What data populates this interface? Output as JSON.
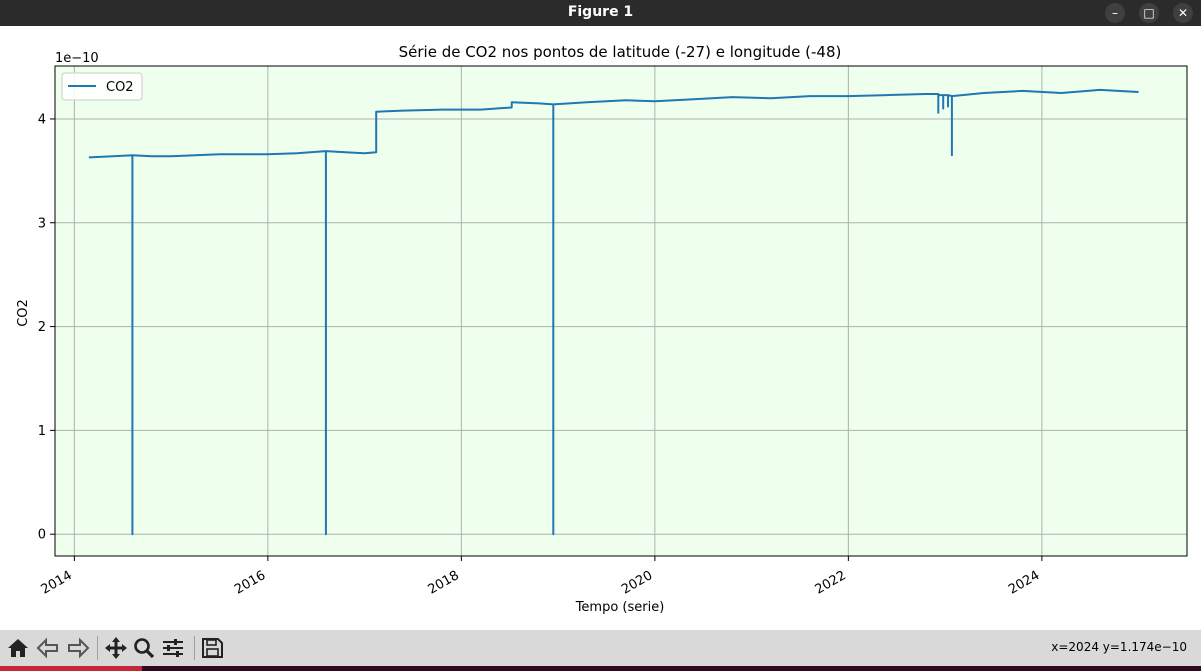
{
  "window": {
    "title": "Figure 1",
    "buttons": [
      "–",
      "□",
      "✕"
    ]
  },
  "toolbar": {
    "buttons": [
      "home-icon",
      "back-icon",
      "forward-icon",
      "pan-icon",
      "zoom-icon",
      "configure-subplots-icon",
      "save-icon"
    ],
    "coordinate_readout": "x=2024 y=1.174e−10"
  },
  "colors": {
    "line": "#1f77b4",
    "plot_background": "#eeffee",
    "grid": "#b0b0b0",
    "titlebar": "#2b2b2b"
  },
  "chart_data": {
    "type": "line",
    "title": "Série de CO2 nos pontos de latitude (-27) e longitude (-48)",
    "xlabel": "Tempo (serie)",
    "ylabel": "CO2",
    "y_offset_text": "1e−10",
    "xlim": [
      2013.8,
      2025.5
    ],
    "ylim": [
      -0.21,
      4.51
    ],
    "x_ticks": [
      2014,
      2016,
      2018,
      2020,
      2022,
      2024
    ],
    "x_tick_labels": [
      "2014",
      "2016",
      "2018",
      "2020",
      "2022",
      "2024"
    ],
    "y_ticks": [
      0,
      1,
      2,
      3,
      4
    ],
    "y_tick_labels": [
      "0",
      "1",
      "2",
      "3",
      "4"
    ],
    "grid": true,
    "legend": "upper-left",
    "series": [
      {
        "name": "CO2",
        "x": [
          2014.15,
          2014.4,
          2014.6,
          2014.6,
          2014.6,
          2014.8,
          2015.0,
          2015.5,
          2016.0,
          2016.3,
          2016.6,
          2016.6,
          2016.6,
          2016.8,
          2017.0,
          2017.12,
          2017.12,
          2017.4,
          2017.8,
          2018.2,
          2018.52,
          2018.52,
          2018.8,
          2018.95,
          2018.95,
          2018.95,
          2019.3,
          2019.7,
          2020.0,
          2020.4,
          2020.8,
          2021.2,
          2021.6,
          2022.0,
          2022.4,
          2022.8,
          2022.93,
          2022.93,
          2022.93,
          2022.98,
          2022.98,
          2022.98,
          2023.03,
          2023.03,
          2023.03,
          2023.07,
          2023.07,
          2023.07,
          2023.4,
          2023.8,
          2024.2,
          2024.6,
          2025.0
        ],
        "y": [
          3.63,
          3.64,
          3.65,
          0.0,
          3.65,
          3.64,
          3.64,
          3.66,
          3.66,
          3.67,
          3.69,
          0.0,
          3.69,
          3.68,
          3.67,
          3.68,
          4.07,
          4.08,
          4.09,
          4.09,
          4.11,
          4.16,
          4.15,
          4.14,
          0.0,
          4.14,
          4.16,
          4.18,
          4.17,
          4.19,
          4.21,
          4.2,
          4.22,
          4.22,
          4.23,
          4.24,
          4.24,
          4.06,
          4.23,
          4.23,
          4.1,
          4.23,
          4.23,
          4.12,
          4.23,
          4.22,
          3.65,
          4.22,
          4.25,
          4.27,
          4.25,
          4.28,
          4.26
        ]
      }
    ]
  }
}
